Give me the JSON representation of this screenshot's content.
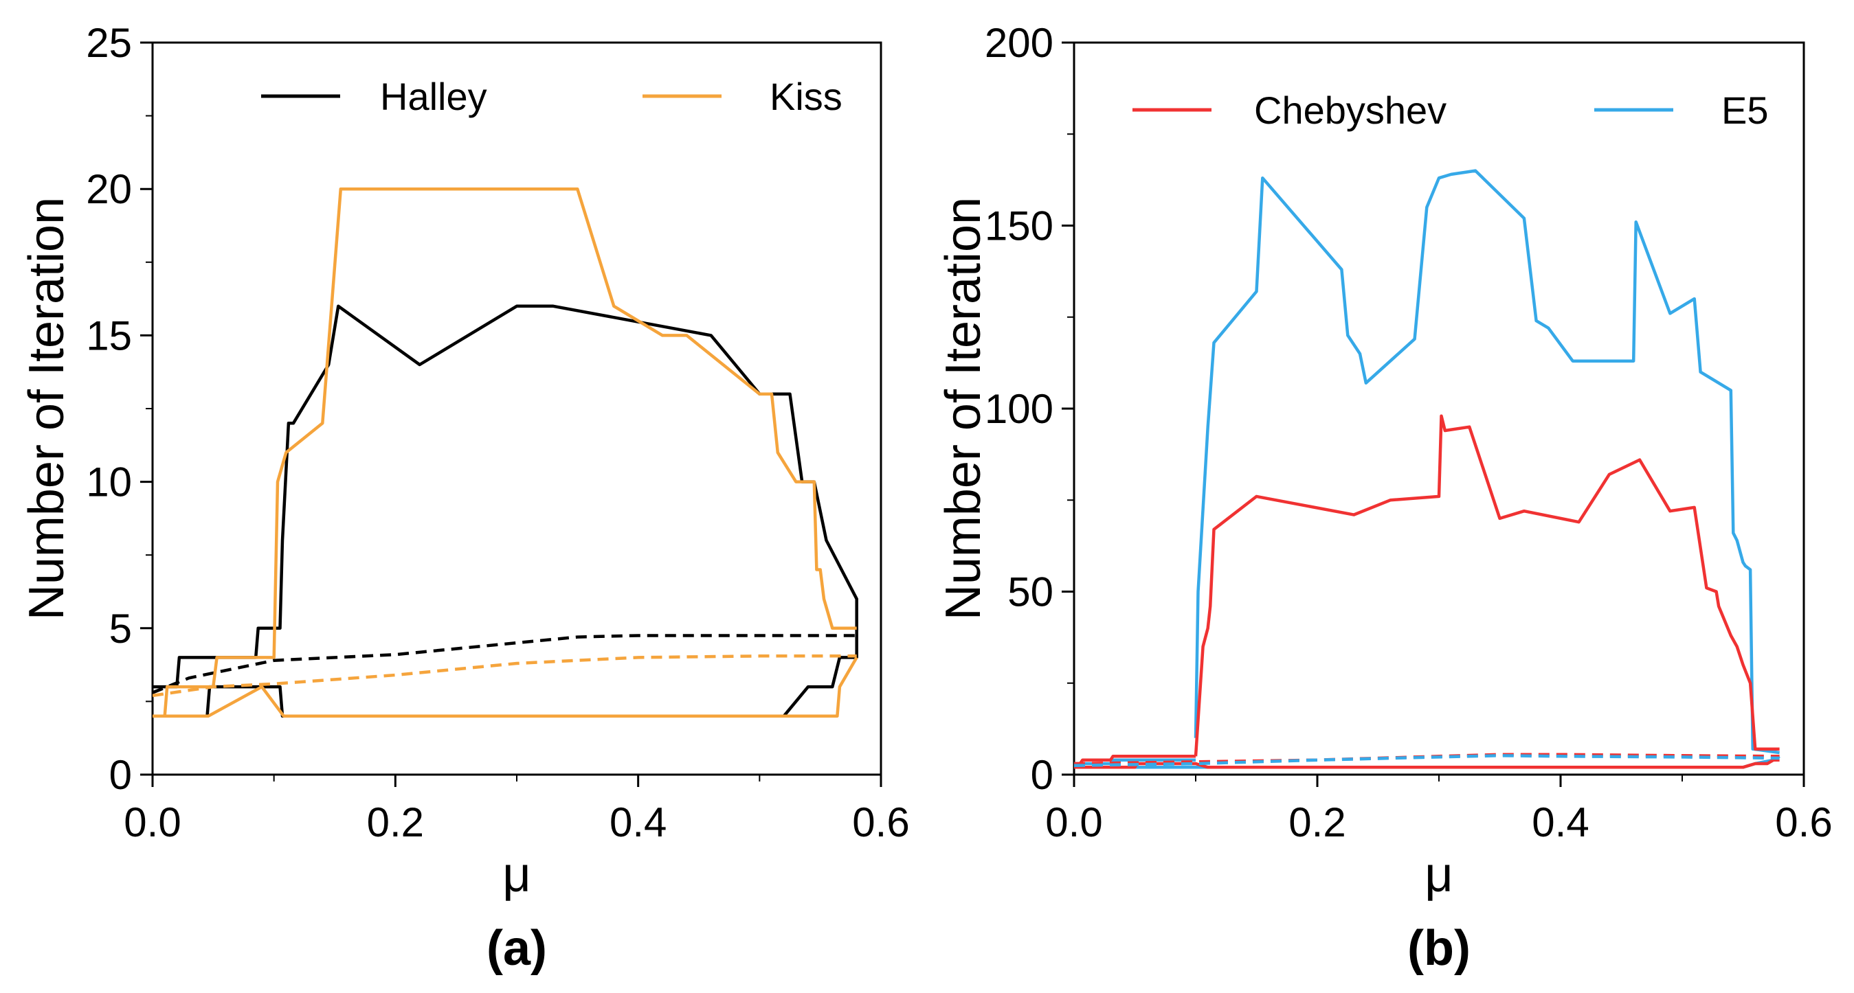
{
  "chart_data": [
    {
      "type": "line",
      "panel_label": "(a)",
      "xlabel": "μ",
      "ylabel": "Number of Iteration",
      "xlim": [
        0,
        0.6
      ],
      "ylim": [
        0,
        25
      ],
      "xticks": [
        0.0,
        0.2,
        0.4,
        0.6
      ],
      "xtick_labels": [
        "0.0",
        "0.2",
        "0.4",
        "0.6"
      ],
      "yticks": [
        0,
        5,
        10,
        15,
        20,
        25
      ],
      "ytick_labels": [
        "0",
        "5",
        "10",
        "15",
        "20",
        "25"
      ],
      "legend": [
        "Halley",
        "Kiss"
      ],
      "series": [
        {
          "name": "Halley",
          "color": "#000000",
          "dash": "solid",
          "x": [
            0.0,
            0.002,
            0.008,
            0.02,
            0.022,
            0.085,
            0.087,
            0.105,
            0.107,
            0.112,
            0.116,
            0.145,
            0.153,
            0.22,
            0.3,
            0.33,
            0.46,
            0.48,
            0.5,
            0.51,
            0.525,
            0.535,
            0.545,
            0.555,
            0.58,
            0.58
          ],
          "values": [
            3,
            3,
            3,
            3,
            4,
            4,
            5,
            5,
            8,
            12,
            12,
            14,
            16,
            14,
            16,
            16,
            15,
            14,
            13,
            13,
            13,
            10,
            10,
            8,
            6,
            4.9
          ]
        },
        {
          "name": "Halley (lower)",
          "color": "#000000",
          "dash": "solid",
          "x": [
            0.0,
            0.0,
            0.045,
            0.047,
            0.105,
            0.107,
            0.52,
            0.54,
            0.56,
            0.566,
            0.58,
            0.58
          ],
          "values": [
            2,
            2,
            2,
            3,
            3,
            2,
            2,
            3,
            3,
            4,
            4,
            5
          ]
        },
        {
          "name": "Halley (mean)",
          "color": "#000000",
          "dash": "dashed",
          "x": [
            0.0,
            0.03,
            0.1,
            0.2,
            0.3,
            0.35,
            0.4,
            0.5,
            0.58
          ],
          "values": [
            2.8,
            3.3,
            3.9,
            4.1,
            4.5,
            4.7,
            4.75,
            4.75,
            4.75
          ]
        },
        {
          "name": "Kiss",
          "color": "#f5a43c",
          "dash": "solid",
          "x": [
            0.0,
            0.0,
            0.01,
            0.012,
            0.05,
            0.053,
            0.1,
            0.103,
            0.11,
            0.14,
            0.155,
            0.35,
            0.38,
            0.42,
            0.44,
            0.5,
            0.51,
            0.515,
            0.53,
            0.538,
            0.545,
            0.547,
            0.55,
            0.553,
            0.56,
            0.56,
            0.58
          ],
          "values": [
            2,
            2,
            2,
            3,
            3,
            4,
            4,
            10,
            11,
            12,
            20,
            20,
            16,
            15,
            15,
            13,
            13,
            11,
            10,
            10,
            10,
            7,
            7,
            6,
            5,
            5,
            5
          ]
        },
        {
          "name": "Kiss (lower)",
          "color": "#f5a43c",
          "dash": "solid",
          "x": [
            0.0,
            0.04,
            0.046,
            0.09,
            0.108,
            0.11,
            0.56,
            0.564,
            0.566,
            0.58
          ],
          "values": [
            2,
            2,
            2,
            3,
            2,
            2,
            2,
            2,
            3,
            4
          ]
        },
        {
          "name": "Kiss (mean)",
          "color": "#f5a43c",
          "dash": "dashed",
          "x": [
            0.0,
            0.05,
            0.1,
            0.2,
            0.3,
            0.4,
            0.5,
            0.58
          ],
          "values": [
            2.7,
            3.0,
            3.1,
            3.4,
            3.8,
            4.0,
            4.05,
            4.05
          ]
        }
      ]
    },
    {
      "type": "line",
      "panel_label": "(b)",
      "xlabel": "μ",
      "ylabel": "Number of Iteration",
      "xlim": [
        0,
        0.6
      ],
      "ylim": [
        0,
        200
      ],
      "xticks": [
        0.0,
        0.2,
        0.4,
        0.6
      ],
      "xtick_labels": [
        "0.0",
        "0.2",
        "0.4",
        "0.6"
      ],
      "yticks": [
        0,
        50,
        100,
        150,
        200
      ],
      "ytick_labels": [
        "0",
        "50",
        "100",
        "150",
        "200"
      ],
      "legend": [
        "Chebyshev",
        "E5"
      ],
      "series": [
        {
          "name": "E5",
          "color": "#36a9e8",
          "dash": "solid",
          "x": [
            0.1,
            0.102,
            0.11,
            0.115,
            0.15,
            0.155,
            0.22,
            0.225,
            0.235,
            0.24,
            0.26,
            0.28,
            0.29,
            0.3,
            0.31,
            0.33,
            0.37,
            0.38,
            0.39,
            0.41,
            0.42,
            0.46,
            0.462,
            0.49,
            0.51,
            0.515,
            0.54,
            0.542,
            0.545,
            0.55,
            0.552,
            0.556,
            0.558,
            0.58
          ],
          "values": [
            10,
            50,
            95,
            118,
            132,
            163,
            138,
            120,
            115,
            107,
            113,
            119,
            155,
            163,
            164,
            165,
            152,
            124,
            122,
            113,
            113,
            113,
            151,
            126,
            130,
            110,
            105,
            66,
            64,
            58,
            57,
            56,
            7,
            6
          ]
        },
        {
          "name": "Chebyshev",
          "color": "#f03232",
          "dash": "solid",
          "x": [
            0.1,
            0.106,
            0.11,
            0.112,
            0.115,
            0.15,
            0.23,
            0.26,
            0.3,
            0.302,
            0.305,
            0.325,
            0.35,
            0.37,
            0.415,
            0.44,
            0.465,
            0.49,
            0.51,
            0.52,
            0.528,
            0.53,
            0.54,
            0.545,
            0.55,
            0.556,
            0.56,
            0.58
          ],
          "values": [
            5,
            35,
            40,
            46,
            67,
            76,
            71,
            75,
            76,
            98,
            94,
            95,
            70,
            72,
            69,
            82,
            86,
            72,
            73,
            51,
            50,
            46,
            38,
            35,
            30,
            25,
            7,
            7
          ]
        },
        {
          "name": "E5 (lower)",
          "color": "#36a9e8",
          "dash": "solid",
          "x": [
            0.0,
            0.1,
            0.11,
            0.55,
            0.56,
            0.575,
            0.58
          ],
          "values": [
            2,
            2,
            2,
            2,
            3,
            4,
            5
          ]
        },
        {
          "name": "Chebyshev (lower)",
          "color": "#f03232",
          "dash": "solid",
          "x": [
            0.0,
            0.0,
            0.05,
            0.052,
            0.1,
            0.11,
            0.55,
            0.56,
            0.57,
            0.575,
            0.58
          ],
          "values": [
            2,
            2,
            2,
            3,
            3,
            2,
            2,
            3,
            3,
            4,
            4
          ]
        },
        {
          "name": "E5 (upper)",
          "color": "#36a9e8",
          "dash": "solid",
          "x": [
            0.0,
            0.0,
            0.03,
            0.032,
            0.1
          ],
          "values": [
            3,
            3,
            3,
            4,
            4
          ]
        },
        {
          "name": "Chebyshev (upper)",
          "color": "#f03232",
          "dash": "solid",
          "x": [
            0.0,
            0.0,
            0.005,
            0.007,
            0.03,
            0.032,
            0.1
          ],
          "values": [
            2,
            3,
            3,
            4,
            4,
            5,
            5
          ]
        },
        {
          "name": "Chebyshev (mean)",
          "color": "#f03232",
          "dash": "dashed",
          "x": [
            0.0,
            0.1,
            0.2,
            0.3,
            0.35,
            0.4,
            0.5,
            0.58
          ],
          "values": [
            3,
            3.5,
            4,
            5,
            5.5,
            5.5,
            5.2,
            5
          ]
        },
        {
          "name": "E5 (mean)",
          "color": "#36a9e8",
          "dash": "dashed",
          "x": [
            0.0,
            0.1,
            0.2,
            0.3,
            0.35,
            0.4,
            0.5,
            0.58
          ],
          "values": [
            2.5,
            3,
            4,
            4.8,
            5.2,
            5,
            4.8,
            4.5
          ]
        }
      ]
    }
  ]
}
